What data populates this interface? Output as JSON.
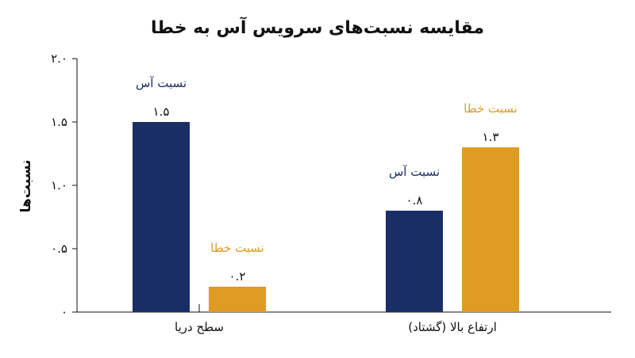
{
  "chart_data": {
    "type": "bar",
    "title": "مقایسه نسبت‌های سرویس آس به خطا",
    "xlabel": "",
    "ylabel": "نسبت‌ها",
    "ylim": [
      0,
      2.0
    ],
    "yticks": [
      0,
      0.5,
      1.0,
      1.5,
      2.0
    ],
    "ytick_labels": [
      "۰",
      "۰.۵",
      "۱.۰",
      "۱.۵",
      "۲.۰"
    ],
    "categories": [
      "سطح دریا",
      "ارتفاع بالا (گشتاد)"
    ],
    "series": [
      {
        "name": "نسبت آس",
        "color": "#1a2e66",
        "values": [
          1.5,
          0.8
        ],
        "value_labels": [
          "۱.۵",
          "۰.۸"
        ],
        "bar_labels": [
          "نسبت آس",
          "نسبت آس"
        ]
      },
      {
        "name": "نسبت خطا",
        "color": "#e09b22",
        "values": [
          0.2,
          1.3
        ],
        "value_labels": [
          "۰.۲",
          "۱.۳"
        ],
        "bar_labels": [
          "نسبت خطا",
          "نسبت خطا"
        ]
      }
    ],
    "grid": false,
    "legend": "none"
  }
}
